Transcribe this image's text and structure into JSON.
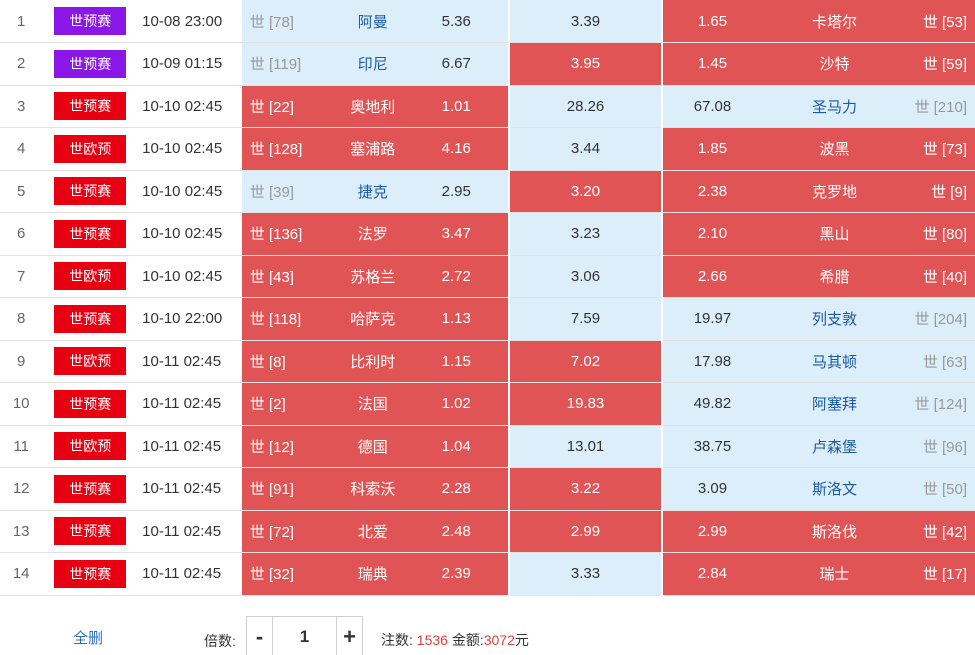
{
  "colors": {
    "selected": "#e05455",
    "unselected": "#ddeefb",
    "wcq_badge_purple": "#8a16e8",
    "badge_red": "#e60012",
    "link_blue": "#2a6ec4"
  },
  "matches": [
    {
      "idx": "1",
      "league": "世预赛",
      "league_color": "#8a16e8",
      "time": "10-08 23:00",
      "home_rank": "世 [78]",
      "home": "阿曼",
      "home_odd": "5.36",
      "draw_odd": "3.39",
      "away_odd": "1.65",
      "away": "卡塔尔",
      "away_rank": "世 [53]",
      "sel": [
        false,
        false,
        true
      ]
    },
    {
      "idx": "2",
      "league": "世预赛",
      "league_color": "#8a16e8",
      "time": "10-09 01:15",
      "home_rank": "世 [119]",
      "home": "印尼",
      "home_odd": "6.67",
      "draw_odd": "3.95",
      "away_odd": "1.45",
      "away": "沙特",
      "away_rank": "世 [59]",
      "sel": [
        false,
        true,
        true
      ]
    },
    {
      "idx": "3",
      "league": "世预赛",
      "league_color": "#e60012",
      "time": "10-10 02:45",
      "home_rank": "世 [22]",
      "home": "奥地利",
      "home_odd": "1.01",
      "draw_odd": "28.26",
      "away_odd": "67.08",
      "away": "圣马力",
      "away_rank": "世 [210]",
      "sel": [
        true,
        false,
        false
      ]
    },
    {
      "idx": "4",
      "league": "世欧预",
      "league_color": "#e60012",
      "time": "10-10 02:45",
      "home_rank": "世 [128]",
      "home": "塞浦路",
      "home_odd": "4.16",
      "draw_odd": "3.44",
      "away_odd": "1.85",
      "away": "波黑",
      "away_rank": "世 [73]",
      "sel": [
        true,
        false,
        true
      ]
    },
    {
      "idx": "5",
      "league": "世预赛",
      "league_color": "#e60012",
      "time": "10-10 02:45",
      "home_rank": "世 [39]",
      "home": "捷克",
      "home_odd": "2.95",
      "draw_odd": "3.20",
      "away_odd": "2.38",
      "away": "克罗地",
      "away_rank": "世 [9]",
      "sel": [
        false,
        true,
        true
      ]
    },
    {
      "idx": "6",
      "league": "世预赛",
      "league_color": "#e60012",
      "time": "10-10 02:45",
      "home_rank": "世 [136]",
      "home": "法罗",
      "home_odd": "3.47",
      "draw_odd": "3.23",
      "away_odd": "2.10",
      "away": "黑山",
      "away_rank": "世 [80]",
      "sel": [
        true,
        false,
        true
      ]
    },
    {
      "idx": "7",
      "league": "世欧预",
      "league_color": "#e60012",
      "time": "10-10 02:45",
      "home_rank": "世 [43]",
      "home": "苏格兰",
      "home_odd": "2.72",
      "draw_odd": "3.06",
      "away_odd": "2.66",
      "away": "希腊",
      "away_rank": "世 [40]",
      "sel": [
        true,
        false,
        true
      ]
    },
    {
      "idx": "8",
      "league": "世预赛",
      "league_color": "#e60012",
      "time": "10-10 22:00",
      "home_rank": "世 [118]",
      "home": "哈萨克",
      "home_odd": "1.13",
      "draw_odd": "7.59",
      "away_odd": "19.97",
      "away": "列支敦",
      "away_rank": "世 [204]",
      "sel": [
        true,
        false,
        false
      ]
    },
    {
      "idx": "9",
      "league": "世欧预",
      "league_color": "#e60012",
      "time": "10-11 02:45",
      "home_rank": "世 [8]",
      "home": "比利时",
      "home_odd": "1.15",
      "draw_odd": "7.02",
      "away_odd": "17.98",
      "away": "马其顿",
      "away_rank": "世 [63]",
      "sel": [
        true,
        true,
        false
      ]
    },
    {
      "idx": "10",
      "league": "世预赛",
      "league_color": "#e60012",
      "time": "10-11 02:45",
      "home_rank": "世 [2]",
      "home": "法国",
      "home_odd": "1.02",
      "draw_odd": "19.83",
      "away_odd": "49.82",
      "away": "阿塞拜",
      "away_rank": "世 [124]",
      "sel": [
        true,
        true,
        false
      ]
    },
    {
      "idx": "11",
      "league": "世欧预",
      "league_color": "#e60012",
      "time": "10-11 02:45",
      "home_rank": "世 [12]",
      "home": "德国",
      "home_odd": "1.04",
      "draw_odd": "13.01",
      "away_odd": "38.75",
      "away": "卢森堡",
      "away_rank": "世 [96]",
      "sel": [
        true,
        false,
        false
      ]
    },
    {
      "idx": "12",
      "league": "世预赛",
      "league_color": "#e60012",
      "time": "10-11 02:45",
      "home_rank": "世 [91]",
      "home": "科索沃",
      "home_odd": "2.28",
      "draw_odd": "3.22",
      "away_odd": "3.09",
      "away": "斯洛文",
      "away_rank": "世 [50]",
      "sel": [
        true,
        true,
        false
      ]
    },
    {
      "idx": "13",
      "league": "世预赛",
      "league_color": "#e60012",
      "time": "10-11 02:45",
      "home_rank": "世 [72]",
      "home": "北爱",
      "home_odd": "2.48",
      "draw_odd": "2.99",
      "away_odd": "2.99",
      "away": "斯洛伐",
      "away_rank": "世 [42]",
      "sel": [
        true,
        true,
        true
      ]
    },
    {
      "idx": "14",
      "league": "世预赛",
      "league_color": "#e60012",
      "time": "10-11 02:45",
      "home_rank": "世 [32]",
      "home": "瑞典",
      "home_odd": "2.39",
      "draw_odd": "3.33",
      "away_odd": "2.84",
      "away": "瑞士",
      "away_rank": "世 [17]",
      "sel": [
        true,
        false,
        true
      ]
    }
  ],
  "footer": {
    "clear_label": "全删",
    "multiplier_label": "倍数:",
    "minus": "-",
    "plus": "+",
    "multiplier_value": "1",
    "bets_label": "注数:",
    "bets_value": "1536",
    "amount_label": "金额:",
    "amount_value": "3072",
    "amount_unit": "元"
  }
}
